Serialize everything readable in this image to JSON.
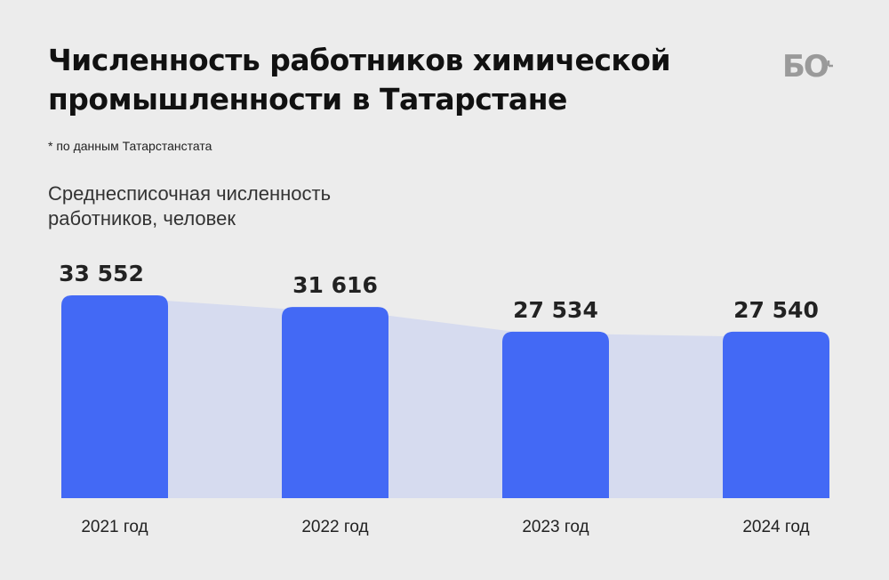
{
  "title": "Численность работников химической промышленности в Татарстане",
  "footnote": "* по данным Татарстанстата",
  "logo": {
    "text": "БО",
    "icon": "clock-icon"
  },
  "colors": {
    "bar": "#4369f5",
    "area": "#d6dbef",
    "background": "#ececec",
    "text": "#222222"
  },
  "chart_data": {
    "type": "bar",
    "title": "Среднесписочная численность работников, человек",
    "categories": [
      "2021 год",
      "2022 год",
      "2023 год",
      "2024 год"
    ],
    "values": [
      33552,
      31616,
      27534,
      27540
    ],
    "value_labels": [
      "33 552",
      "31 616",
      "27 534",
      "27 540"
    ],
    "ylim": [
      0,
      35000
    ],
    "grid": false,
    "legend": "none"
  }
}
